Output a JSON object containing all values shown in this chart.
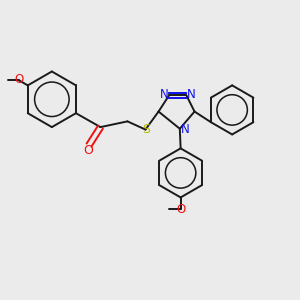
{
  "bg_color": "#ebebeb",
  "bond_color": "#1a1a1a",
  "bond_lw": 1.4,
  "atom_colors": {
    "O": "#ee1111",
    "N": "#1111ee",
    "S": "#bbbb00",
    "C": "#1a1a1a"
  },
  "font_size": 8.5,
  "label_fontsize": 7.5
}
